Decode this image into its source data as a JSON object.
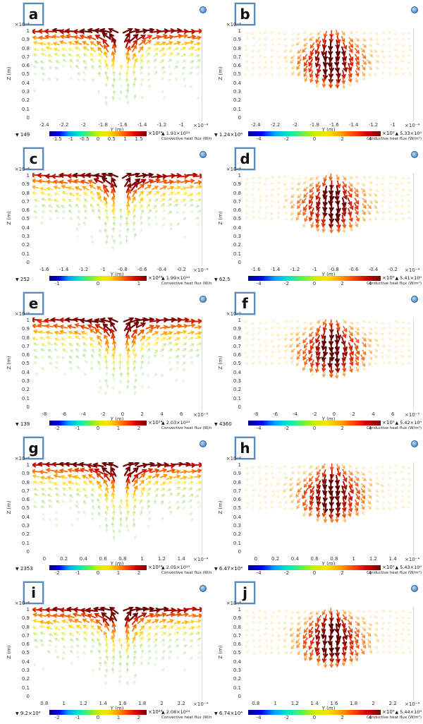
{
  "shared": {
    "z_axis_label": "Z (m)",
    "y_axis_label": "Y (m)",
    "z_ticks": [
      "1",
      "0.9",
      "0.8",
      "0.7",
      "0.6",
      "0.5",
      "0.4",
      "0.3",
      "0.2",
      "0.1",
      "0"
    ],
    "min_marker": "▼",
    "max_marker": "▲"
  },
  "colors": {
    "badge_border": "#5b8ab8",
    "widget_icon_blue": "#2f6bab",
    "colorbar_gradient": [
      "#00007f",
      "#0000f0",
      "#00a0ff",
      "#00e8c8",
      "#58f058",
      "#c8f000",
      "#ffe000",
      "#ffa000",
      "#ff4000",
      "#cc0000",
      "#7a0000"
    ]
  },
  "chart_data": [
    {
      "id": "a",
      "type": "quiver",
      "flux": "convective",
      "y_axis_exponent": "×10⁻⁴",
      "x_axis_exponent": "×10⁻⁴",
      "x_ticks": [
        "-2.4",
        "-2.2",
        "-2",
        "-1.8",
        "-1.6",
        "-1.4",
        "-1.2",
        "-1"
      ],
      "z_range": [
        0,
        1
      ],
      "colorbar": {
        "min": "149",
        "max": "1.91×10²⁴",
        "exponent": "×10²⁴",
        "ticks": [
          "-1.5",
          "-1",
          "-0.5",
          "0",
          "0.5",
          "1",
          "1.5"
        ],
        "title": "Convective heat flux (W/m²)"
      }
    },
    {
      "id": "b",
      "type": "quiver",
      "flux": "conductive",
      "y_axis_exponent": "×10⁻⁴",
      "x_axis_exponent": "×10⁻⁴",
      "x_ticks": [
        "-2.4",
        "-2.2",
        "-2",
        "-1.8",
        "-1.6",
        "-1.4",
        "-1.2",
        "-1"
      ],
      "z_range": [
        0,
        1
      ],
      "colorbar": {
        "min": "1.24×10⁴",
        "max": "5.33×10⁹",
        "exponent": "×10⁹",
        "ticks": [
          "-4",
          "-2",
          "0",
          "2",
          "4"
        ],
        "title": "Conductive heat flux (W/m²)"
      }
    },
    {
      "id": "c",
      "type": "quiver",
      "flux": "convective",
      "y_axis_exponent": "×10⁻⁴",
      "x_axis_exponent": "×10⁻⁴",
      "x_ticks": [
        "-1.6",
        "-1.4",
        "-1.2",
        "-1",
        "-0.8",
        "-0.6",
        "-0.4",
        "-0.2"
      ],
      "z_range": [
        0,
        1
      ],
      "colorbar": {
        "min": "252",
        "max": "1.99×10²⁴",
        "exponent": "×10²⁴",
        "ticks": [
          "-1",
          "0",
          "1"
        ],
        "title": "Convective heat flux (W/m²)"
      }
    },
    {
      "id": "d",
      "type": "quiver",
      "flux": "conductive",
      "y_axis_exponent": "×10⁻⁴",
      "x_axis_exponent": "×10⁻⁴",
      "x_ticks": [
        "-1.6",
        "-1.4",
        "-1.2",
        "-1",
        "-0.8",
        "-0.6",
        "-0.4",
        "-0.2"
      ],
      "z_range": [
        0,
        1
      ],
      "colorbar": {
        "min": "62.5",
        "max": "5.41×10⁹",
        "exponent": "×10⁹",
        "ticks": [
          "-4",
          "-2",
          "0",
          "2",
          "4"
        ],
        "title": "Conductive heat flux (W/m²)"
      }
    },
    {
      "id": "e",
      "type": "quiver",
      "flux": "convective",
      "y_axis_exponent": "×10⁻⁵",
      "x_axis_exponent": "×10⁻⁵",
      "x_ticks": [
        "-8",
        "-6",
        "-4",
        "-2",
        "0",
        "2",
        "4",
        "6"
      ],
      "z_range": [
        0,
        1
      ],
      "colorbar": {
        "min": "139",
        "max": "2.03×10²⁴",
        "exponent": "×10²⁴",
        "ticks": [
          "-2",
          "-1",
          "0",
          "1",
          "2"
        ],
        "title": "Convective heat flux (W/m²)"
      }
    },
    {
      "id": "f",
      "type": "quiver",
      "flux": "conductive",
      "y_axis_exponent": "×10⁻⁵",
      "x_axis_exponent": "×10⁻⁵",
      "x_ticks": [
        "-8",
        "-6",
        "-4",
        "-2",
        "0",
        "2",
        "4",
        "6"
      ],
      "z_range": [
        0,
        1
      ],
      "colorbar": {
        "min": "4360",
        "max": "5.42×10⁹",
        "exponent": "×10⁹",
        "ticks": [
          "-4",
          "-2",
          "0",
          "2",
          "4"
        ],
        "title": "Conductive heat flux (W/m²)"
      }
    },
    {
      "id": "g",
      "type": "quiver",
      "flux": "convective",
      "y_axis_exponent": "×10⁻⁴",
      "x_axis_exponent": "×10⁻⁴",
      "x_ticks": [
        "0",
        "0.2",
        "0.4",
        "0.6",
        "0.8",
        "1",
        "1.2",
        "1.4"
      ],
      "z_range": [
        0,
        1
      ],
      "colorbar": {
        "min": "2353",
        "max": "2.05×10²⁴",
        "exponent": "×10²⁴",
        "ticks": [
          "-2",
          "-1",
          "0",
          "1",
          "2"
        ],
        "title": "Convective heat flux (W/m²)"
      }
    },
    {
      "id": "h",
      "type": "quiver",
      "flux": "conductive",
      "y_axis_exponent": "×10⁻⁴",
      "x_axis_exponent": "×10⁻⁴",
      "x_ticks": [
        "0",
        "0.2",
        "0.4",
        "0.6",
        "0.8",
        "1",
        "1.2",
        "1.4"
      ],
      "z_range": [
        0,
        1
      ],
      "colorbar": {
        "min": "6.47×10⁴",
        "max": "5.43×10⁹",
        "exponent": "×10⁹",
        "ticks": [
          "-4",
          "-2",
          "0",
          "2",
          "4"
        ],
        "title": "Conductive heat flux (W/m²)"
      }
    },
    {
      "id": "i",
      "type": "quiver",
      "flux": "convective",
      "y_axis_exponent": "×10⁻⁴",
      "x_axis_exponent": "×10⁻⁴",
      "x_ticks": [
        "0.8",
        "1",
        "1.2",
        "1.4",
        "1.6",
        "1.8",
        "2",
        "2.2"
      ],
      "z_range": [
        0,
        1
      ],
      "colorbar": {
        "min": "9.2×10⁴",
        "max": "2.08×10²⁴",
        "exponent": "×10²⁴",
        "ticks": [
          "-2",
          "-1",
          "0",
          "1",
          "2"
        ],
        "title": "Convective heat flux (W/m²)"
      }
    },
    {
      "id": "j",
      "type": "quiver",
      "flux": "conductive",
      "y_axis_exponent": "×10⁻⁴",
      "x_axis_exponent": "×10⁻⁴",
      "x_ticks": [
        "0.8",
        "1",
        "1.2",
        "1.4",
        "1.6",
        "1.8",
        "2",
        "2.2"
      ],
      "z_range": [
        0,
        1
      ],
      "colorbar": {
        "min": "6.74×10⁴",
        "max": "5.44×10⁹",
        "exponent": "×10⁹",
        "ticks": [
          "-4",
          "-2",
          "0",
          "2",
          "4"
        ],
        "title": "Conductive heat flux (W/m²)"
      }
    }
  ]
}
